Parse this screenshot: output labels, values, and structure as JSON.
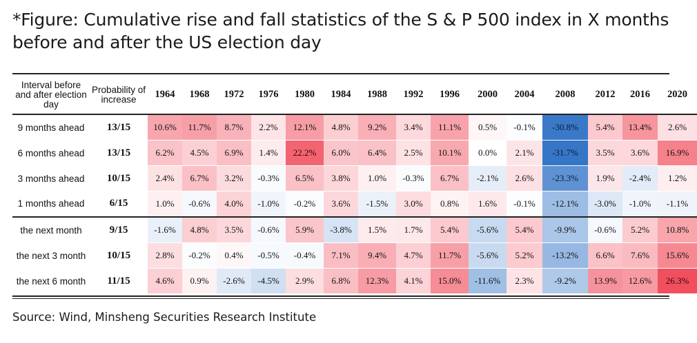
{
  "title": "*Figure: Cumulative rise and fall statistics of the S & P 500 index in X months before and after the US election day",
  "source": "Source: Wind, Minsheng Securities Research Institute",
  "header": {
    "interval_label": "Interval before and after election day",
    "probability_label": "Probability of increase"
  },
  "colors": {
    "positive": "#ee2a3c",
    "negative": "#2a6fc4"
  },
  "chart_data": {
    "type": "table",
    "title": "Cumulative rise and fall statistics of the S & P 500 index in X months before and after the US election day",
    "columns": [
      "1964",
      "1968",
      "1972",
      "1976",
      "1980",
      "1984",
      "1988",
      "1992",
      "1996",
      "2000",
      "2004",
      "2008",
      "2012",
      "2016",
      "2020"
    ],
    "rows": [
      {
        "label": "9 months ahead",
        "probability": "13/15",
        "values": [
          "10.6%",
          "11.7%",
          "8.7%",
          "2.2%",
          "12.1%",
          "4.8%",
          "9.2%",
          "3.4%",
          "11.1%",
          "0.5%",
          "-0.1%",
          "-30.8%",
          "5.4%",
          "13.4%",
          "2.6%"
        ]
      },
      {
        "label": "6 months ahead",
        "probability": "13/15",
        "values": [
          "6.2%",
          "4.5%",
          "6.9%",
          "1.4%",
          "22.2%",
          "6.0%",
          "6.4%",
          "2.5%",
          "10.1%",
          "0.0%",
          "2.1%",
          "-31.7%",
          "3.5%",
          "3.6%",
          "16.9%"
        ]
      },
      {
        "label": "3 months ahead",
        "probability": "10/15",
        "values": [
          "2.4%",
          "6.7%",
          "3.2%",
          "-0.3%",
          "6.5%",
          "3.8%",
          "1.0%",
          "-0.3%",
          "6.7%",
          "-2.1%",
          "2.6%",
          "-23.3%",
          "1.9%",
          "-2.4%",
          "1.2%"
        ]
      },
      {
        "label": "1 months ahead",
        "probability": "6/15",
        "values": [
          "1.0%",
          "-0.6%",
          "4.0%",
          "-1.0%",
          "-0.2%",
          "3.6%",
          "-1.5%",
          "3.0%",
          "0.8%",
          "1.6%",
          "-0.1%",
          "-12.1%",
          "-3.0%",
          "-1.0%",
          "-1.1%"
        ]
      },
      {
        "label": "the next month",
        "probability": "9/15",
        "values": [
          "-1.6%",
          "4.8%",
          "3.5%",
          "-0.6%",
          "5.9%",
          "-3.8%",
          "1.5%",
          "1.7%",
          "5.4%",
          "-5.6%",
          "5.4%",
          "-9.9%",
          "-0.6%",
          "5.2%",
          "10.8%"
        ]
      },
      {
        "label": "the next 3 month",
        "probability": "10/15",
        "values": [
          "2.8%",
          "-0.2%",
          "0.4%",
          "-0.5%",
          "-0.4%",
          "7.1%",
          "9.4%",
          "4.7%",
          "11.7%",
          "-5.6%",
          "5.2%",
          "-13.2%",
          "6.6%",
          "7.6%",
          "15.6%"
        ]
      },
      {
        "label": "the next 6 month",
        "probability": "11/15",
        "values": [
          "4.6%",
          "0.9%",
          "-2.6%",
          "-4.5%",
          "2.9%",
          "6.8%",
          "12.3%",
          "4.1%",
          "15.0%",
          "-11.6%",
          "2.3%",
          "-9.2%",
          "13.9%",
          "12.6%",
          "26.3%"
        ]
      }
    ]
  }
}
